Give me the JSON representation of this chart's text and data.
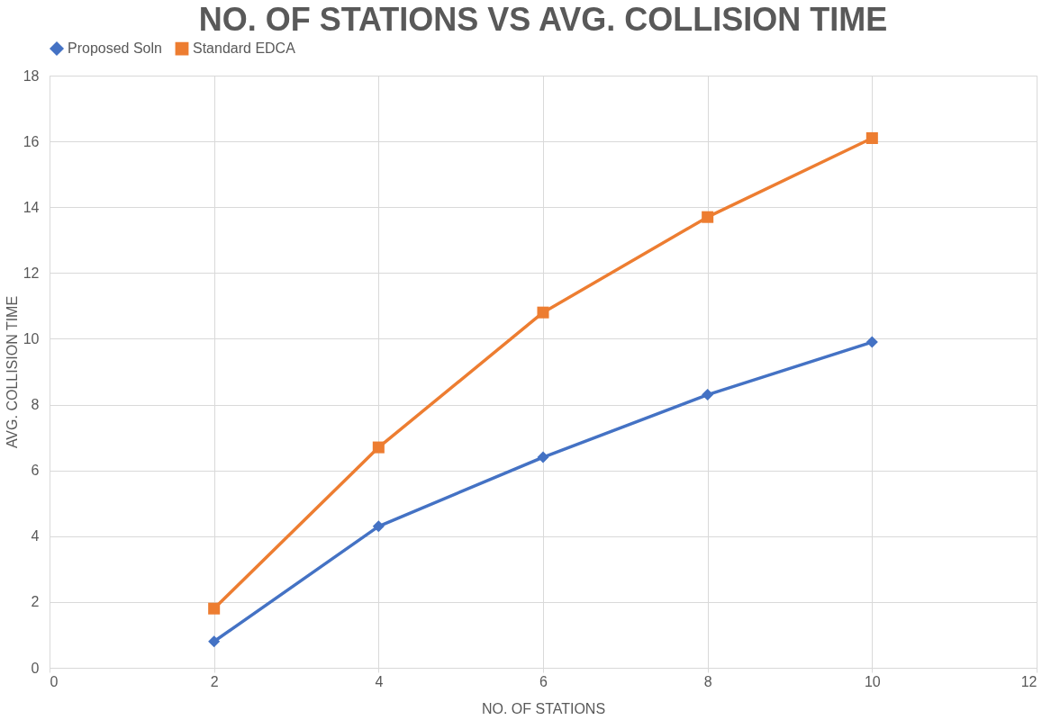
{
  "chart_data": {
    "type": "line",
    "title": "NO. OF STATIONS VS AVG. COLLISION TIME",
    "xlabel": "NO. OF STATIONS",
    "ylabel": "AVG. COLLISION TIME",
    "x": [
      2,
      4,
      6,
      8,
      10
    ],
    "series": [
      {
        "name": "Proposed Soln",
        "color": "#4472c4",
        "marker": "diamond",
        "values": [
          0.8,
          4.3,
          6.4,
          8.3,
          9.9
        ]
      },
      {
        "name": "Standard EDCA",
        "color": "#ed7d31",
        "marker": "square",
        "values": [
          1.8,
          6.7,
          10.8,
          13.7,
          16.1
        ]
      }
    ],
    "xlim": [
      0,
      12
    ],
    "xticks": [
      0,
      2,
      4,
      6,
      8,
      10,
      12
    ],
    "ylim": [
      0,
      18
    ],
    "yticks": [
      0,
      2,
      4,
      6,
      8,
      10,
      12,
      14,
      16,
      18
    ],
    "grid": true,
    "legend": "top",
    "line_style": "solid"
  }
}
